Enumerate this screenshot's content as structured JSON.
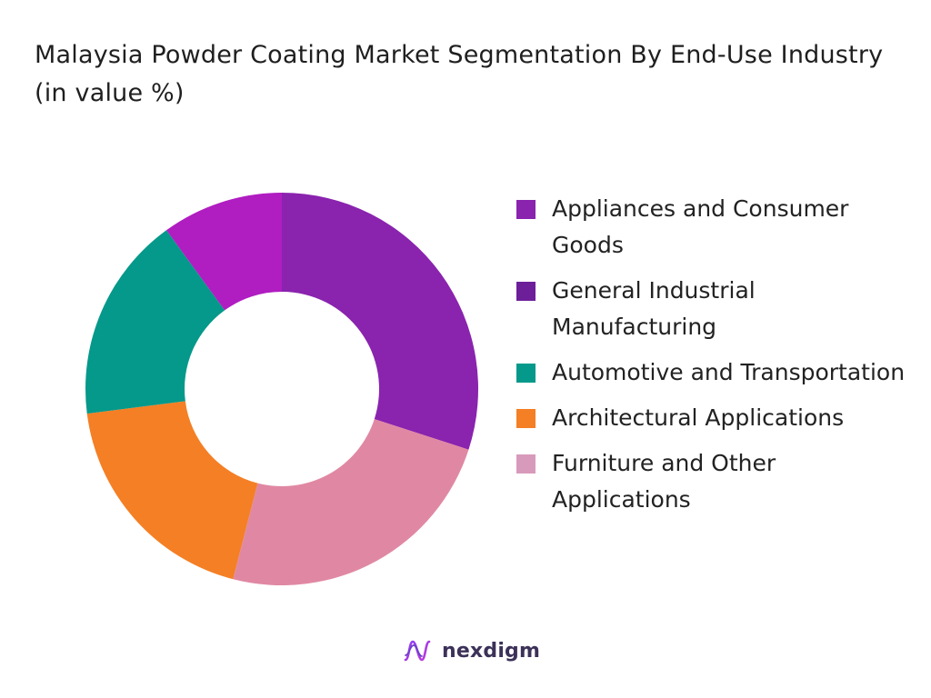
{
  "title": "Malaysia Powder Coating Market Segmentation By End-Use Industry (in value %)",
  "chart_data": {
    "type": "pie",
    "variant": "donut",
    "legend_position": "right",
    "series": [
      {
        "name": "Appliances and Consumer Goods",
        "value": 10,
        "color": "#B01DC1"
      },
      {
        "name": "General Industrial Manufacturing",
        "value": 30,
        "color": "#8A23AE"
      },
      {
        "name": "Automotive and Transportation",
        "value": 17,
        "color": "#04998A"
      },
      {
        "name": "Architectural Applications",
        "value": 19,
        "color": "#F47F25"
      },
      {
        "name": "Furniture and Other Applications",
        "value": 24,
        "color": "#E088A3"
      }
    ],
    "plot_order": [
      "General Industrial Manufacturing",
      "Furniture and Other Applications",
      "Architectural Applications",
      "Automotive and Transportation",
      "Appliances and Consumer Goods"
    ]
  },
  "legend": {
    "items": [
      {
        "label": "Appliances and Consumer Goods",
        "color": "#8A23AE"
      },
      {
        "label": "General Industrial Manufacturing",
        "color": "#6D1F9A"
      },
      {
        "label": "Automotive and Transportation",
        "color": "#04998A"
      },
      {
        "label": "Architectural Applications",
        "color": "#F47F25"
      },
      {
        "label": "Furniture and Other Applications",
        "color": "#D89ABB"
      }
    ]
  },
  "brand": {
    "name": "nexdigm",
    "icon": "nexdigm-logo-icon"
  }
}
